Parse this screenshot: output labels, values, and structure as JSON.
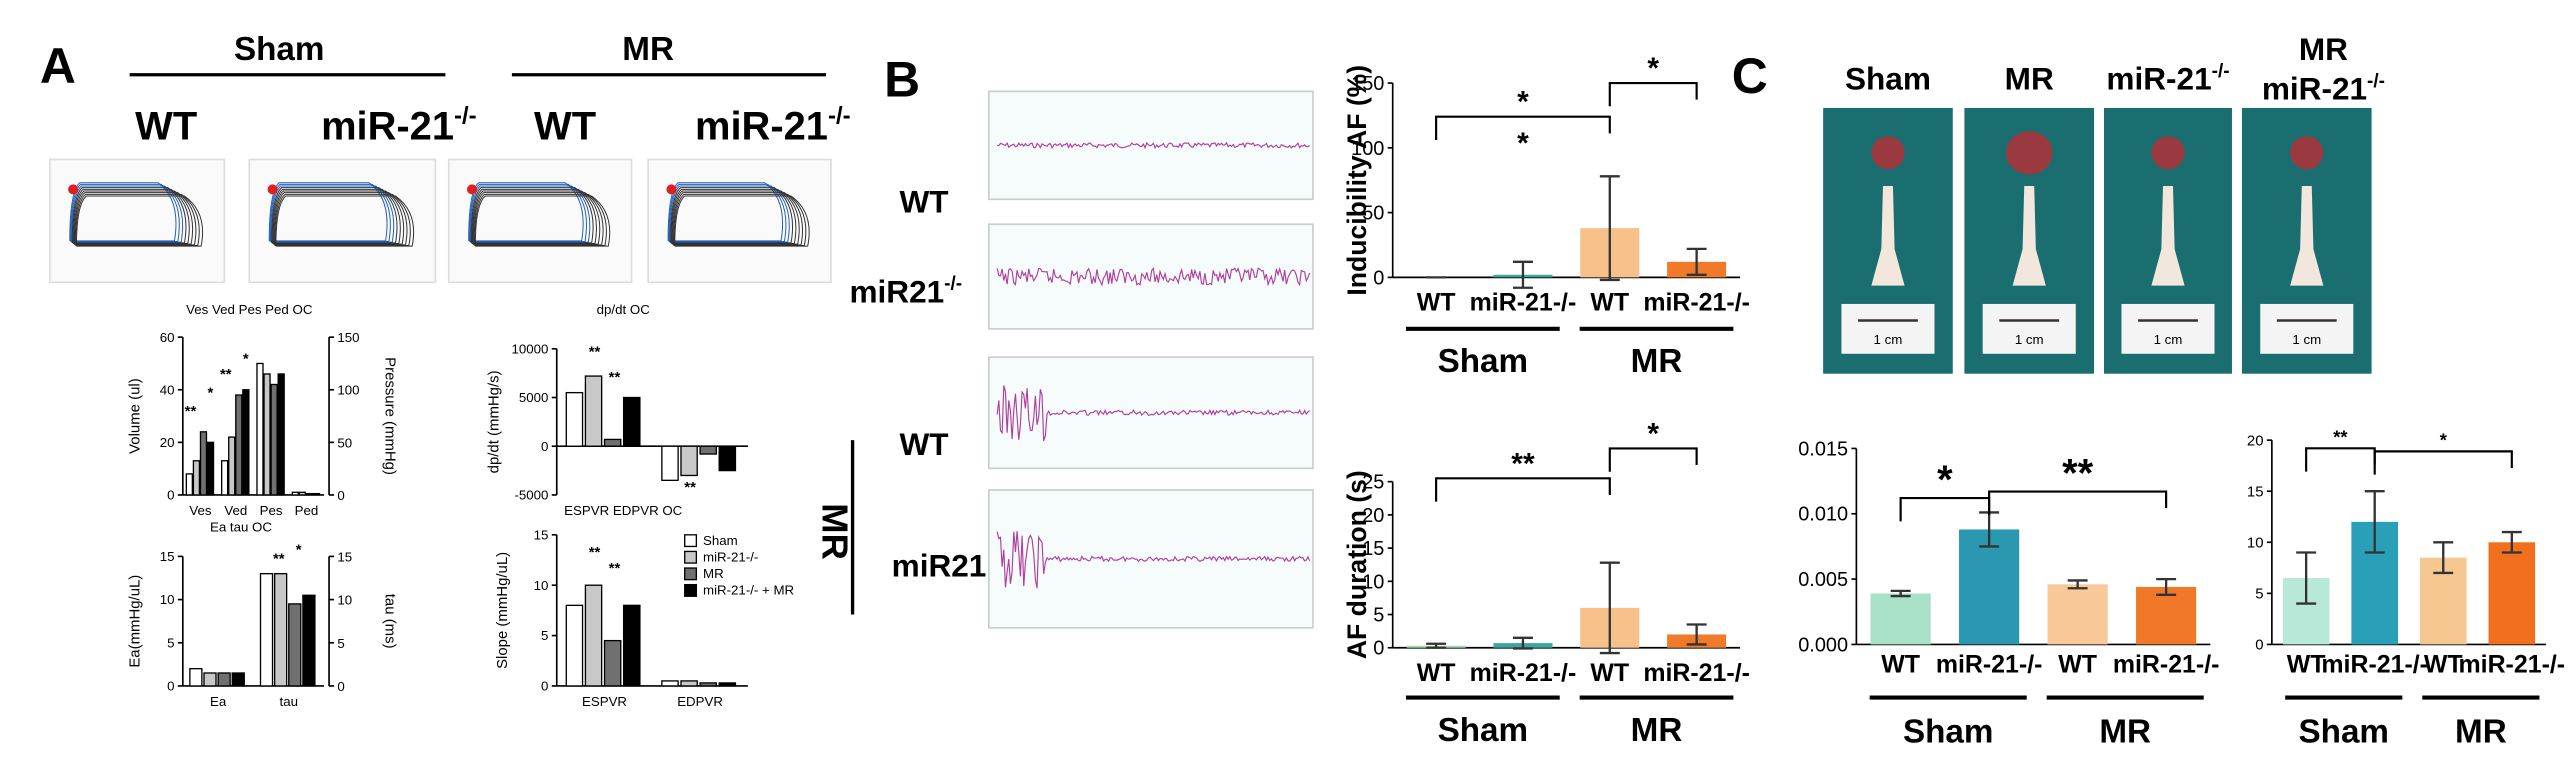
{
  "panel_a": {
    "label": "A",
    "groups": [
      "Sham",
      "MR"
    ],
    "columns": [
      {
        "base": "WT"
      },
      {
        "base": "miR-21",
        "sup": "-/-"
      },
      {
        "base": "WT"
      },
      {
        "base": "miR-21",
        "sup": "-/-"
      }
    ]
  },
  "panel_b": {
    "label": "B",
    "group": "MR",
    "rows": [
      {
        "base": "WT"
      },
      {
        "base": "miR21",
        "sup": "-/-"
      },
      {
        "base": "WT"
      },
      {
        "base": "miR21"
      }
    ]
  },
  "panel_c": {
    "label": "C",
    "scale_bar": "1 cm",
    "columns": [
      [
        {
          "base": "Sham"
        }
      ],
      [
        {
          "base": "MR"
        }
      ],
      [
        {
          "base": "miR-21",
          "sup": "-/-"
        }
      ],
      [
        {
          "base": "MR"
        },
        {
          "base": "miR-21",
          "sup": "-/-"
        }
      ]
    ]
  },
  "chart_data": [
    {
      "type": "bar",
      "title": "Ves Ved Pes Ped OC",
      "ylabel": "Volume (ul)",
      "y2label": "Pressure (mmHg)",
      "categories": [
        "Ves",
        "Ved",
        "Pes",
        "Ped"
      ],
      "series": [
        {
          "color": "#ffffff",
          "values": [
            8,
            13,
            50,
            1
          ]
        },
        {
          "color": "#c8c8c8",
          "values": [
            13,
            22,
            46,
            1
          ]
        },
        {
          "color": "#707070",
          "values": [
            24,
            38,
            42,
            0.5
          ]
        },
        {
          "color": "#000000",
          "values": [
            20,
            40,
            46,
            0.5
          ]
        }
      ],
      "ylim": [
        0,
        60
      ],
      "yticks": [
        0,
        20,
        40,
        60
      ],
      "y2lim": [
        0,
        150
      ],
      "y2ticks": [
        0,
        50,
        100,
        150
      ],
      "annotations": [
        "**",
        "*",
        "**",
        "*"
      ]
    },
    {
      "type": "bar",
      "title": "dp/dt OC",
      "ylabel": "dp/dt (mmHg/s)",
      "categories": [
        null,
        null
      ],
      "series": [
        {
          "color": "#ffffff",
          "values": [
            5500,
            -3500
          ]
        },
        {
          "color": "#c8c8c8",
          "values": [
            7200,
            -3000
          ]
        },
        {
          "color": "#707070",
          "values": [
            700,
            -800
          ]
        },
        {
          "color": "#000000",
          "values": [
            5000,
            -2500
          ]
        }
      ],
      "ylim": [
        -5000,
        10000
      ],
      "yticks": [
        -5000,
        0,
        5000,
        10000
      ],
      "annotations": [
        "**",
        "**",
        "**"
      ]
    },
    {
      "type": "bar",
      "title": "Ea tau OC",
      "ylabel": "Ea(mmHg/uL)",
      "y2label": "tau (ms)",
      "categories": [
        "Ea",
        "tau"
      ],
      "series": [
        {
          "color": "#ffffff",
          "values": [
            2,
            13
          ]
        },
        {
          "color": "#c8c8c8",
          "values": [
            1.5,
            13
          ]
        },
        {
          "color": "#707070",
          "values": [
            1.5,
            9.5
          ]
        },
        {
          "color": "#000000",
          "values": [
            1.5,
            10.5
          ]
        }
      ],
      "ylim": [
        0,
        15
      ],
      "yticks": [
        0,
        5,
        10,
        15
      ],
      "y2lim": [
        0,
        15
      ],
      "y2ticks": [
        0,
        5,
        10,
        15
      ],
      "annotations": [
        "**",
        "*"
      ]
    },
    {
      "type": "bar",
      "title": "ESPVR EDPVR OC",
      "ylabel": "Slope (mmHg/uL)",
      "categories": [
        "ESPVR",
        "EDPVR"
      ],
      "series": [
        {
          "name": "Sham",
          "color": "#ffffff",
          "values": [
            8,
            0.5
          ]
        },
        {
          "name": "miR-21-/-",
          "color": "#c8c8c8",
          "values": [
            10,
            0.5
          ]
        },
        {
          "name": "MR",
          "color": "#707070",
          "values": [
            4.5,
            0.3
          ]
        },
        {
          "name": "miR-21-/- + MR",
          "color": "#000000",
          "values": [
            8,
            0.3
          ]
        }
      ],
      "ylim": [
        0,
        15
      ],
      "yticks": [
        0,
        5,
        10,
        15
      ],
      "legend": "top-right",
      "annotations": [
        "**",
        "**"
      ]
    },
    {
      "type": "bar",
      "ylabel": "Inducibility AF (%)",
      "categories": [
        "WT",
        "miR-21-/-",
        "WT",
        "miR-21-/-"
      ],
      "values": [
        0,
        2,
        38,
        12
      ],
      "errors": [
        0,
        10,
        40,
        10
      ],
      "colors": [
        "#a8d8b0",
        "#3aa7a0",
        "#f8c08a",
        "#f07a2a"
      ],
      "ylim": [
        0,
        150
      ],
      "yticks": [
        0,
        50,
        100,
        150
      ],
      "groups": [
        "Sham",
        "MR"
      ],
      "annotations": [
        "*",
        "*",
        "*"
      ]
    },
    {
      "type": "bar",
      "ylabel": "AF duration (s)",
      "categories": [
        "WT",
        "miR-21-/-",
        "WT",
        "miR-21-/-"
      ],
      "values": [
        0.3,
        0.7,
        6,
        2
      ],
      "errors": [
        0.3,
        0.8,
        6.8,
        1.5
      ],
      "colors": [
        "#a8d8b0",
        "#3aa7a0",
        "#f8c08a",
        "#f07a2a"
      ],
      "ylim": [
        0,
        25
      ],
      "yticks": [
        0,
        5,
        10,
        15,
        20,
        25
      ],
      "groups": [
        "Sham",
        "MR"
      ],
      "annotations": [
        "**",
        "*"
      ]
    },
    {
      "type": "bar",
      "categories": [
        "WT",
        "miR-21-/-",
        "WT",
        "miR-21-/-"
      ],
      "values": [
        0.0039,
        0.0088,
        0.0046,
        0.0044
      ],
      "errors": [
        0.0002,
        0.0013,
        0.0003,
        0.0006
      ],
      "colors": [
        "#a8e0c8",
        "#2a98b0",
        "#f8c898",
        "#f07828"
      ],
      "ylim": [
        0,
        0.015
      ],
      "yticks": [
        {
          "value": 0,
          "label": "0.000"
        },
        {
          "value": 0.005,
          "label": "0.005"
        },
        {
          "value": 0.01,
          "label": "0.010"
        },
        {
          "value": 0.015,
          "label": "0.015"
        }
      ],
      "groups": [
        "Sham",
        "MR"
      ],
      "annotations": [
        "*",
        "**"
      ]
    },
    {
      "type": "bar",
      "categories": [
        "WT",
        "miR-21-/-",
        "WT",
        "miR-21-/-"
      ],
      "values": [
        6.5,
        12,
        8.5,
        10
      ],
      "errors": [
        2.5,
        3,
        1.5,
        1
      ],
      "colors": [
        "#b8e8d8",
        "#2aa0b8",
        "#f4c890",
        "#f07020"
      ],
      "ylim": [
        0,
        20
      ],
      "yticks": [
        0,
        5,
        10,
        15,
        20
      ],
      "groups": [
        "Sham",
        "MR"
      ],
      "annotations": [
        "**",
        "*"
      ]
    }
  ]
}
